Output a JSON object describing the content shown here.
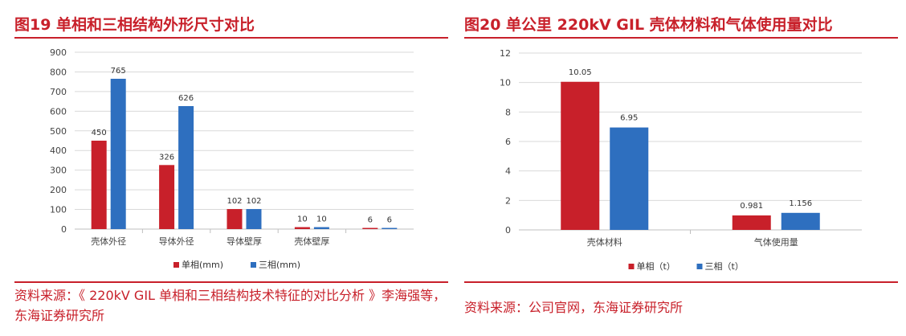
{
  "colors": {
    "accent": "#c8202a",
    "series_red": "#c8202a",
    "series_blue": "#2e6fbf",
    "grid": "#d9d9d9",
    "axis": "#bfbfbf"
  },
  "left": {
    "figure_title": "图19 单相和三相结构外形尺寸对比",
    "source_text": "资料来源：《 220kV GIL 单相和三相结构技术特征的对比分析 》李海强等，东海证券研究所"
  },
  "right": {
    "figure_title": "图20 单公里 220kV GIL 壳体材料和气体使用量对比",
    "source_text": "资料来源：公司官网，东海证券研究所"
  },
  "chart_data": [
    {
      "type": "bar",
      "categories": [
        "壳体外径",
        "导体外径",
        "导体壁厚",
        "壳体壁厚",
        ""
      ],
      "series": [
        {
          "name": "单相(mm)",
          "values": [
            450,
            326,
            102,
            10,
            6
          ],
          "labels": [
            "450",
            "326",
            "102",
            "10",
            "6"
          ]
        },
        {
          "name": "三相(mm)",
          "values": [
            765,
            626,
            102,
            10,
            6
          ],
          "labels": [
            "765",
            "626",
            "102",
            "10",
            "6"
          ]
        }
      ],
      "ylim": [
        0,
        900
      ],
      "yticks": [
        "0",
        "100",
        "200",
        "300",
        "400",
        "500",
        "600",
        "700",
        "800",
        "900"
      ],
      "grid": true,
      "legend": "bottom"
    },
    {
      "type": "bar",
      "categories": [
        "壳体材料",
        "气体使用量"
      ],
      "series": [
        {
          "name": "单相（t）",
          "values": [
            10.05,
            0.981
          ],
          "labels": [
            "10.05",
            "0.981"
          ]
        },
        {
          "name": "三相（t）",
          "values": [
            6.95,
            1.156
          ],
          "labels": [
            "6.95",
            "1.156"
          ]
        }
      ],
      "ylim": [
        0,
        12
      ],
      "yticks": [
        "0",
        "2",
        "4",
        "6",
        "8",
        "10",
        "12"
      ],
      "grid": true,
      "legend": "bottom"
    }
  ]
}
